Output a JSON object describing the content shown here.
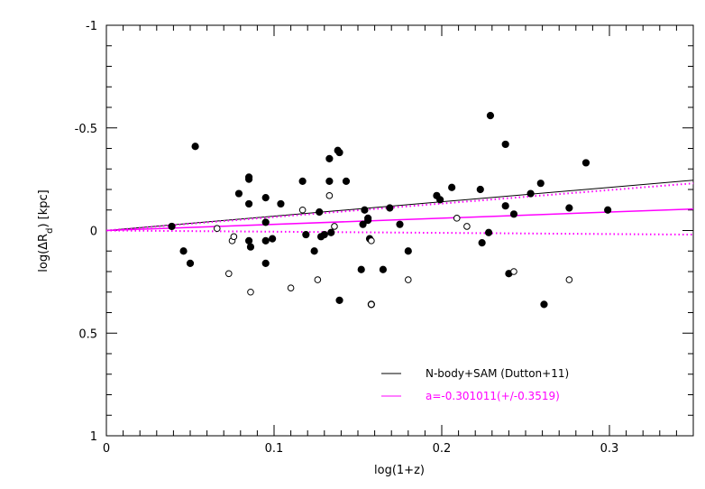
{
  "chart_data": {
    "type": "scatter",
    "title": "",
    "xlabel": "log(1+z)",
    "ylabel": "log(ΔR_d) [kpc]",
    "xlim": [
      0,
      0.35
    ],
    "ylim": [
      -1,
      1
    ],
    "y_inverted": true,
    "grid": false,
    "legend_placement": "bottom-right",
    "x_ticks": [
      0,
      0.1,
      0.2,
      0.3
    ],
    "x_tick_labels": [
      "0",
      "0.1",
      "0.2",
      "0.3"
    ],
    "y_ticks": [
      -1,
      -0.5,
      0,
      0.5,
      1
    ],
    "y_tick_labels": [
      "-1",
      "-0.5",
      "0",
      "0.5",
      "1"
    ],
    "series": [
      {
        "marker": "filled-circle",
        "color": "#000000",
        "points": [
          [
            0.039,
            -0.02
          ],
          [
            0.046,
            0.1
          ],
          [
            0.05,
            0.16
          ],
          [
            0.053,
            -0.41
          ],
          [
            0.079,
            -0.18
          ],
          [
            0.085,
            -0.26
          ],
          [
            0.085,
            -0.25
          ],
          [
            0.085,
            -0.13
          ],
          [
            0.085,
            0.05
          ],
          [
            0.086,
            0.08
          ],
          [
            0.095,
            -0.16
          ],
          [
            0.095,
            -0.04
          ],
          [
            0.095,
            0.05
          ],
          [
            0.095,
            0.16
          ],
          [
            0.099,
            0.04
          ],
          [
            0.104,
            -0.13
          ],
          [
            0.117,
            -0.24
          ],
          [
            0.119,
            0.02
          ],
          [
            0.124,
            0.1
          ],
          [
            0.127,
            -0.09
          ],
          [
            0.128,
            0.03
          ],
          [
            0.13,
            0.02
          ],
          [
            0.133,
            -0.35
          ],
          [
            0.133,
            -0.24
          ],
          [
            0.134,
            0.01
          ],
          [
            0.138,
            -0.39
          ],
          [
            0.139,
            -0.38
          ],
          [
            0.139,
            0.34
          ],
          [
            0.143,
            -0.24
          ],
          [
            0.152,
            0.19
          ],
          [
            0.153,
            -0.03
          ],
          [
            0.154,
            -0.1
          ],
          [
            0.156,
            -0.05
          ],
          [
            0.156,
            -0.06
          ],
          [
            0.157,
            0.04
          ],
          [
            0.158,
            0.36
          ],
          [
            0.165,
            0.19
          ],
          [
            0.169,
            -0.11
          ],
          [
            0.175,
            -0.03
          ],
          [
            0.18,
            0.1
          ],
          [
            0.197,
            -0.17
          ],
          [
            0.199,
            -0.15
          ],
          [
            0.206,
            -0.21
          ],
          [
            0.223,
            -0.2
          ],
          [
            0.224,
            0.06
          ],
          [
            0.228,
            0.01
          ],
          [
            0.229,
            -0.56
          ],
          [
            0.238,
            -0.42
          ],
          [
            0.238,
            -0.12
          ],
          [
            0.24,
            0.21
          ],
          [
            0.243,
            -0.08
          ],
          [
            0.253,
            -0.18
          ],
          [
            0.259,
            -0.23
          ],
          [
            0.261,
            0.36
          ],
          [
            0.276,
            -0.11
          ],
          [
            0.286,
            -0.33
          ],
          [
            0.299,
            -0.1
          ]
        ]
      },
      {
        "marker": "open-circle",
        "color": "#000000",
        "points": [
          [
            0.073,
            0.21
          ],
          [
            0.066,
            -0.01
          ],
          [
            0.075,
            0.05
          ],
          [
            0.076,
            0.03
          ],
          [
            0.086,
            0.3
          ],
          [
            0.11,
            0.28
          ],
          [
            0.117,
            -0.1
          ],
          [
            0.126,
            0.24
          ],
          [
            0.133,
            -0.17
          ],
          [
            0.136,
            -0.02
          ],
          [
            0.158,
            0.05
          ],
          [
            0.158,
            0.36
          ],
          [
            0.18,
            0.24
          ],
          [
            0.209,
            -0.06
          ],
          [
            0.215,
            -0.02
          ],
          [
            0.243,
            0.2
          ],
          [
            0.276,
            0.24
          ]
        ]
      }
    ],
    "lines": [
      {
        "legend_label": "N-body+SAM (Dutton+11)",
        "color": "#000000",
        "style": "solid",
        "x": [
          0,
          0.35
        ],
        "y": [
          0,
          -0.245
        ]
      },
      {
        "legend_label": "a=-0.301011(+/-0.3519)",
        "color": "#ff00ff",
        "style": "solid",
        "x": [
          0,
          0.35
        ],
        "y": [
          0,
          -0.105
        ]
      },
      {
        "color": "#ff00ff",
        "style": "dotted",
        "x": [
          0,
          0.35
        ],
        "y": [
          0,
          -0.23
        ]
      },
      {
        "color": "#ff00ff",
        "style": "dotted",
        "x": [
          0,
          0.35
        ],
        "y": [
          0,
          0.02
        ]
      }
    ]
  }
}
